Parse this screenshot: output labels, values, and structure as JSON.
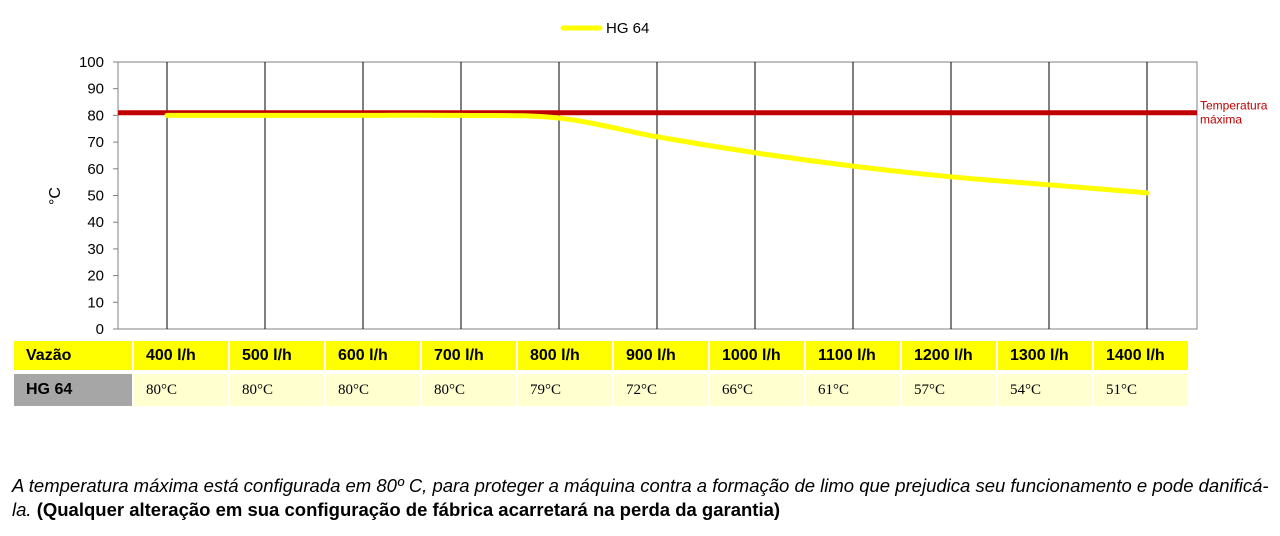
{
  "chart_data": {
    "type": "line",
    "title": "",
    "xlabel": "",
    "ylabel": "°C",
    "ylim": [
      0,
      100
    ],
    "yticks": [
      0,
      10,
      20,
      30,
      40,
      50,
      60,
      70,
      80,
      90,
      100
    ],
    "categories": [
      "400 l/h",
      "500 l/h",
      "600 l/h",
      "700 l/h",
      "800 l/h",
      "900 l/h",
      "1000 l/h",
      "1100 l/h",
      "1200 l/h",
      "1300 l/h",
      "1400 l/h"
    ],
    "series": [
      {
        "name": "HG 64",
        "values": [
          80,
          80,
          80,
          80,
          79,
          72,
          66,
          61,
          57,
          54,
          51
        ],
        "color": "#ffff00"
      }
    ],
    "reference_line": {
      "value": 81,
      "label_line1": "Temperatura",
      "label_line2": "máxima",
      "color": "#c00000"
    },
    "grid": "vertical",
    "legend": "top-center"
  },
  "table": {
    "header_label": "Vazão",
    "row_label": "HG 64",
    "columns": [
      "400 l/h",
      "500 l/h",
      "600 l/h",
      "700 l/h",
      "800 l/h",
      "900 l/h",
      "1000 l/h",
      "1100 l/h",
      "1200 l/h",
      "1300 l/h",
      "1400 l/h"
    ],
    "values": [
      "80°C",
      "80°C",
      "80°C",
      "80°C",
      "79°C",
      "72°C",
      "66°C",
      "61°C",
      "57°C",
      "54°C",
      "51°C"
    ],
    "colors": {
      "header": "#ffff00",
      "values": "#ffffd0",
      "row_label": "#a6a6a6"
    }
  },
  "note": {
    "italic": "A temperatura máxima está configurada em 80º C, para proteger a máquina contra a formação de limo que prejudica seu funcionamento e pode danificá-la. ",
    "bold": "(Qualquer alteração em sua configuração de fábrica acarretará na perda da garantia)"
  }
}
